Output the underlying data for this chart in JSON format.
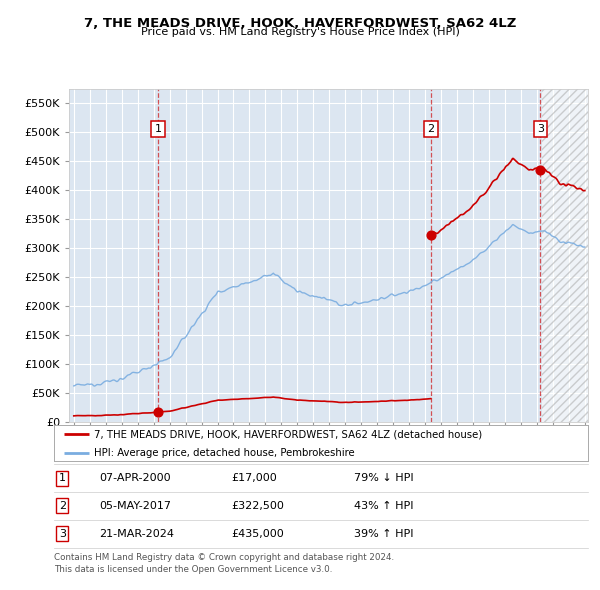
{
  "title": "7, THE MEADS DRIVE, HOOK, HAVERFORDWEST, SA62 4LZ",
  "subtitle": "Price paid vs. HM Land Registry's House Price Index (HPI)",
  "sale_prices": [
    17000,
    322500,
    435000
  ],
  "sale_years": [
    2000.27,
    2017.37,
    2024.22
  ],
  "sale_labels": [
    "1",
    "2",
    "3"
  ],
  "property_line_color": "#cc0000",
  "hpi_line_color": "#7aade0",
  "background_color": "#dce6f1",
  "hatch_start": 2024.3,
  "xlim": [
    1994.7,
    2027.2
  ],
  "ylim": [
    0,
    575000
  ],
  "yticks": [
    0,
    50000,
    100000,
    150000,
    200000,
    250000,
    300000,
    350000,
    400000,
    450000,
    500000,
    550000
  ],
  "ytick_labels": [
    "£0",
    "£50K",
    "£100K",
    "£150K",
    "£200K",
    "£250K",
    "£300K",
    "£350K",
    "£400K",
    "£450K",
    "£500K",
    "£550K"
  ],
  "xticks": [
    1995,
    1996,
    1997,
    1998,
    1999,
    2000,
    2001,
    2002,
    2003,
    2004,
    2005,
    2006,
    2007,
    2008,
    2009,
    2010,
    2011,
    2012,
    2013,
    2014,
    2015,
    2016,
    2017,
    2018,
    2019,
    2020,
    2021,
    2022,
    2023,
    2024,
    2025,
    2026,
    2027
  ],
  "legend_line1": "7, THE MEADS DRIVE, HOOK, HAVERFORDWEST, SA62 4LZ (detached house)",
  "legend_line2": "HPI: Average price, detached house, Pembrokeshire",
  "table_data": [
    [
      "1",
      "07-APR-2000",
      "£17,000",
      "79% ↓ HPI"
    ],
    [
      "2",
      "05-MAY-2017",
      "£322,500",
      "43% ↑ HPI"
    ],
    [
      "3",
      "21-MAR-2024",
      "£435,000",
      "39% ↑ HPI"
    ]
  ],
  "footnote1": "Contains HM Land Registry data © Crown copyright and database right 2024.",
  "footnote2": "This data is licensed under the Open Government Licence v3.0."
}
